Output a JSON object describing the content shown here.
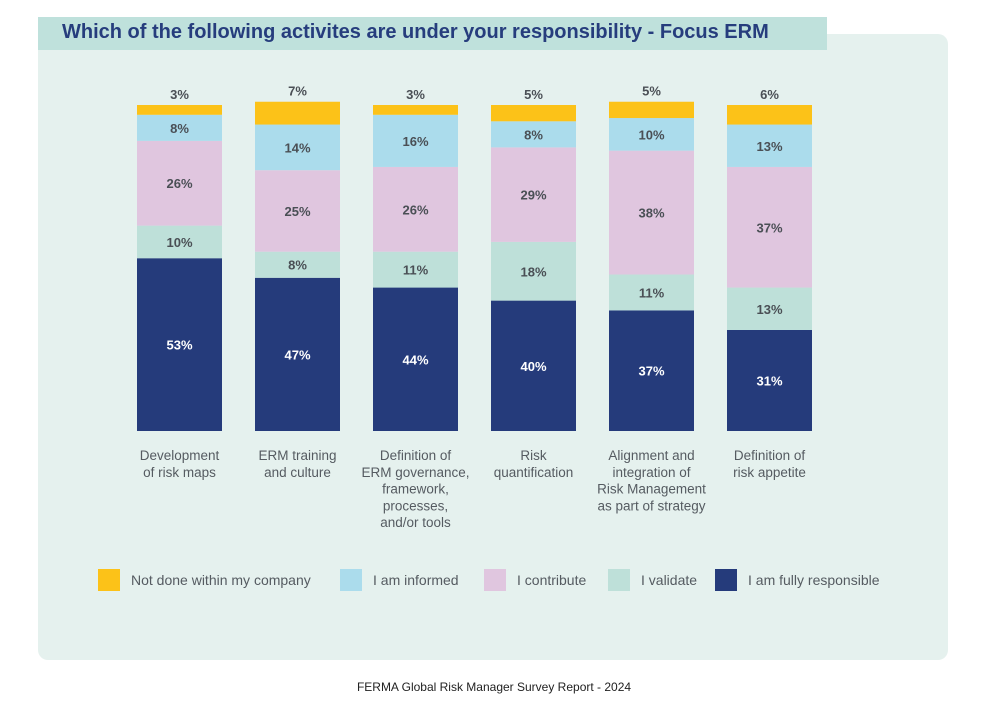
{
  "chart_data": {
    "type": "bar",
    "stacked": true,
    "title": "Which of the following activites are under your responsibility - Focus ERM",
    "categories": [
      [
        "Development",
        "of risk maps"
      ],
      [
        "ERM training",
        "and culture"
      ],
      [
        "Definition of",
        "ERM governance,",
        "framework,",
        "processes,",
        "and/or tools"
      ],
      [
        "Risk",
        "quantification"
      ],
      [
        "Alignment and",
        "integration of",
        "Risk Management",
        "as part of strategy"
      ],
      [
        "Definition of",
        "risk appetite"
      ]
    ],
    "series": [
      {
        "name": "I am fully responsible",
        "color": "#253b7b",
        "text_color": "#ffffff",
        "values": [
          53,
          47,
          44,
          40,
          37,
          31
        ]
      },
      {
        "name": "I validate",
        "color": "#bee0d9",
        "text_color": "#4a4f55",
        "values": [
          10,
          8,
          11,
          18,
          11,
          13
        ]
      },
      {
        "name": "I contribute",
        "color": "#e0c6df",
        "text_color": "#4a4f55",
        "values": [
          26,
          25,
          26,
          29,
          38,
          37
        ]
      },
      {
        "name": "I am informed",
        "color": "#abdcec",
        "text_color": "#4a4f55",
        "values": [
          8,
          14,
          16,
          8,
          10,
          13
        ]
      },
      {
        "name": "Not done within my company",
        "color": "#fcc218",
        "text_color": "#4a4f55",
        "values": [
          3,
          7,
          3,
          5,
          5,
          6
        ]
      }
    ],
    "legend_order": [
      "Not done within my company",
      "I am informed",
      "I contribute",
      "I validate",
      "I am fully responsible"
    ],
    "value_suffix": "%",
    "ylim": [
      0,
      100
    ]
  },
  "footer": "FERMA Global Risk Manager Survey Report - 2024"
}
